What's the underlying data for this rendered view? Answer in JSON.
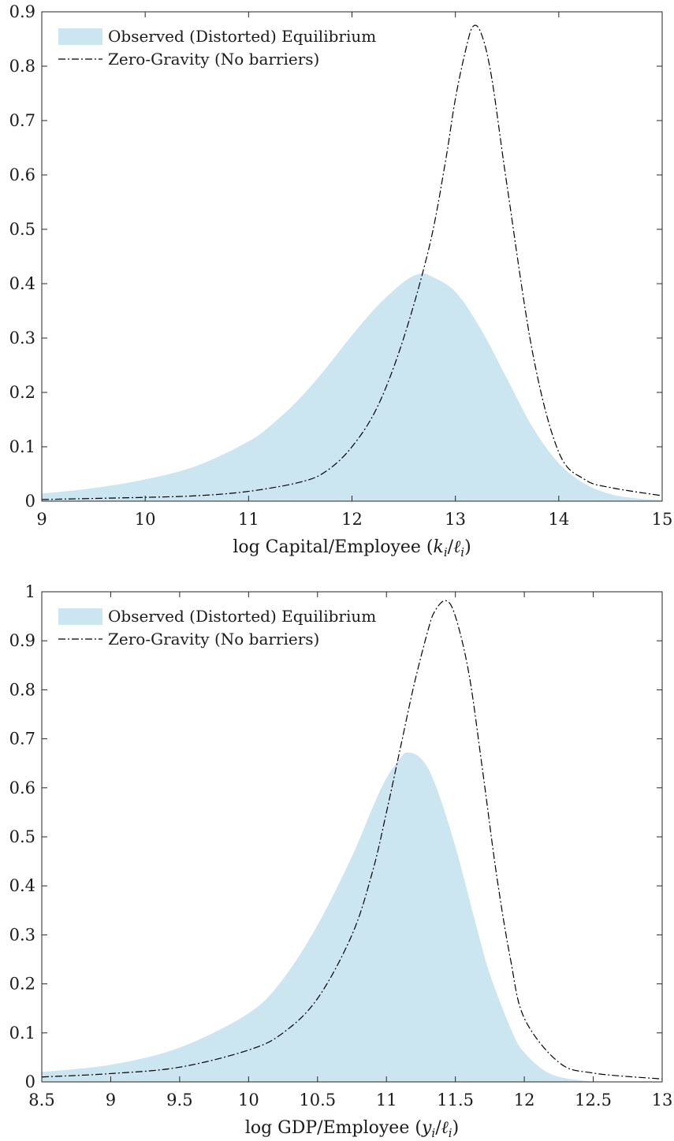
{
  "chart_data": [
    {
      "type": "area",
      "xlabel": "log Capital/Employee (k_i/ℓ_i)",
      "xlabel_parts": [
        "log Capital/Employee (",
        "k",
        "i",
        "/",
        "ℓ",
        "i",
        ")"
      ],
      "xlim": [
        9,
        15
      ],
      "ylim": [
        0,
        0.9
      ],
      "x_ticks": [
        "9",
        "10",
        "11",
        "12",
        "13",
        "14",
        "15"
      ],
      "y_ticks": [
        "0",
        "0.1",
        "0.2",
        "0.3",
        "0.4",
        "0.5",
        "0.6",
        "0.7",
        "0.8",
        "0.9"
      ],
      "legend_position": "top-left",
      "grid": false,
      "series": [
        {
          "name": "Observed (Distorted) Equilibrium",
          "style": "filled-area",
          "color": "#cbe5f1",
          "x": [
            9.0,
            9.5,
            10.0,
            10.5,
            11.0,
            11.25,
            11.5,
            11.75,
            12.0,
            12.25,
            12.5,
            12.65,
            12.75,
            13.0,
            13.25,
            13.5,
            13.75,
            14.0,
            14.25,
            14.5,
            14.75,
            15.0
          ],
          "y": [
            0.014,
            0.024,
            0.04,
            0.065,
            0.11,
            0.145,
            0.19,
            0.245,
            0.305,
            0.36,
            0.403,
            0.418,
            0.415,
            0.385,
            0.315,
            0.225,
            0.135,
            0.07,
            0.032,
            0.013,
            0.005,
            0.002
          ]
        },
        {
          "name": "Zero-Gravity (No barriers)",
          "style": "dash-dot-line",
          "color": "#000000",
          "x": [
            9.0,
            9.5,
            10.0,
            10.5,
            11.0,
            11.5,
            11.75,
            12.0,
            12.25,
            12.5,
            12.75,
            12.9,
            13.0,
            13.1,
            13.17,
            13.25,
            13.35,
            13.5,
            13.75,
            14.0,
            14.25,
            14.5,
            15.0
          ],
          "y": [
            0.003,
            0.005,
            0.007,
            0.01,
            0.018,
            0.035,
            0.055,
            0.1,
            0.175,
            0.3,
            0.47,
            0.62,
            0.74,
            0.83,
            0.873,
            0.86,
            0.78,
            0.58,
            0.27,
            0.09,
            0.04,
            0.025,
            0.01
          ]
        }
      ]
    },
    {
      "type": "area",
      "xlabel": "log GDP/Employee (y_i/ℓ_i)",
      "xlabel_parts": [
        "log GDP/Employee (",
        "y",
        "i",
        "/",
        "ℓ",
        "i",
        ")"
      ],
      "xlim": [
        8.5,
        13
      ],
      "ylim": [
        0,
        1
      ],
      "x_ticks": [
        "8.5",
        "9",
        "9.5",
        "10",
        "10.5",
        "11",
        "11.5",
        "12",
        "12.5",
        "13"
      ],
      "y_ticks": [
        "0",
        "0.1",
        "0.2",
        "0.3",
        "0.4",
        "0.5",
        "0.6",
        "0.7",
        "0.8",
        "0.9",
        "1"
      ],
      "legend_position": "top-left",
      "grid": false,
      "series": [
        {
          "name": "Observed (Distorted) Equilibrium",
          "style": "filled-area",
          "color": "#cbe5f1",
          "x": [
            8.5,
            9.0,
            9.5,
            10.0,
            10.25,
            10.5,
            10.75,
            10.9,
            11.0,
            11.1,
            11.15,
            11.25,
            11.35,
            11.5,
            11.65,
            11.75,
            11.9,
            12.0,
            12.2,
            12.5
          ],
          "y": [
            0.02,
            0.035,
            0.07,
            0.14,
            0.21,
            0.32,
            0.46,
            0.56,
            0.62,
            0.66,
            0.672,
            0.66,
            0.61,
            0.48,
            0.32,
            0.22,
            0.11,
            0.06,
            0.015,
            0.0
          ]
        },
        {
          "name": "Zero-Gravity (No barriers)",
          "style": "dash-dot-line",
          "color": "#000000",
          "x": [
            8.5,
            9.0,
            9.5,
            10.0,
            10.25,
            10.5,
            10.75,
            10.9,
            11.0,
            11.1,
            11.2,
            11.3,
            11.35,
            11.43,
            11.5,
            11.6,
            11.7,
            11.8,
            11.9,
            12.0,
            12.25,
            12.5,
            13.0
          ],
          "y": [
            0.01,
            0.017,
            0.03,
            0.065,
            0.1,
            0.17,
            0.3,
            0.43,
            0.55,
            0.68,
            0.81,
            0.92,
            0.96,
            0.982,
            0.95,
            0.83,
            0.63,
            0.42,
            0.25,
            0.13,
            0.04,
            0.018,
            0.006
          ]
        }
      ]
    }
  ]
}
